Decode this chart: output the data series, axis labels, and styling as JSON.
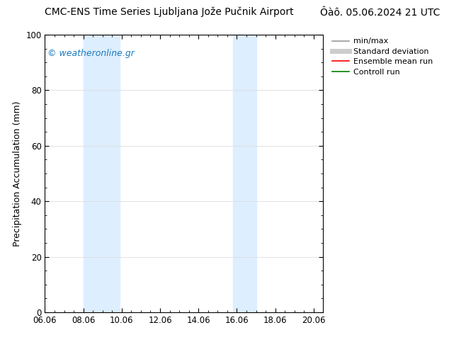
{
  "title_left": "CMC-ENS Time Series Ljubljana Jože Pučnik Airport",
  "title_right": "Ôàô. 05.06.2024 21 UTC",
  "ylabel": "Precipitation Accumulation (mm)",
  "ylim": [
    0,
    100
  ],
  "yticks": [
    0,
    20,
    40,
    60,
    80,
    100
  ],
  "xtick_labels": [
    "06.06",
    "08.06",
    "10.06",
    "12.06",
    "14.06",
    "16.06",
    "18.06",
    "20.06"
  ],
  "xtick_positions": [
    0,
    2,
    4,
    6,
    8,
    10,
    12,
    14
  ],
  "xlim": [
    0,
    14.5
  ],
  "shaded_bands": [
    {
      "x_start": 2.0,
      "x_end": 3.9,
      "color": "#ddeeff"
    },
    {
      "x_start": 9.8,
      "x_end": 11.0,
      "color": "#ddeeff"
    }
  ],
  "watermark_text": "© weatheronline.gr",
  "watermark_color": "#1a7abf",
  "legend_items": [
    {
      "label": "min/max",
      "color": "#999999",
      "lw": 1.2
    },
    {
      "label": "Standard deviation",
      "color": "#cccccc",
      "lw": 5
    },
    {
      "label": "Ensemble mean run",
      "color": "#ff0000",
      "lw": 1.2
    },
    {
      "label": "Controll run",
      "color": "#008000",
      "lw": 1.2
    }
  ],
  "bg_color": "#ffffff",
  "grid_color": "#dddddd",
  "font_size_title": 10,
  "font_size_ylabel": 9,
  "font_size_ticks": 8.5,
  "font_size_legend": 8,
  "font_size_watermark": 9
}
